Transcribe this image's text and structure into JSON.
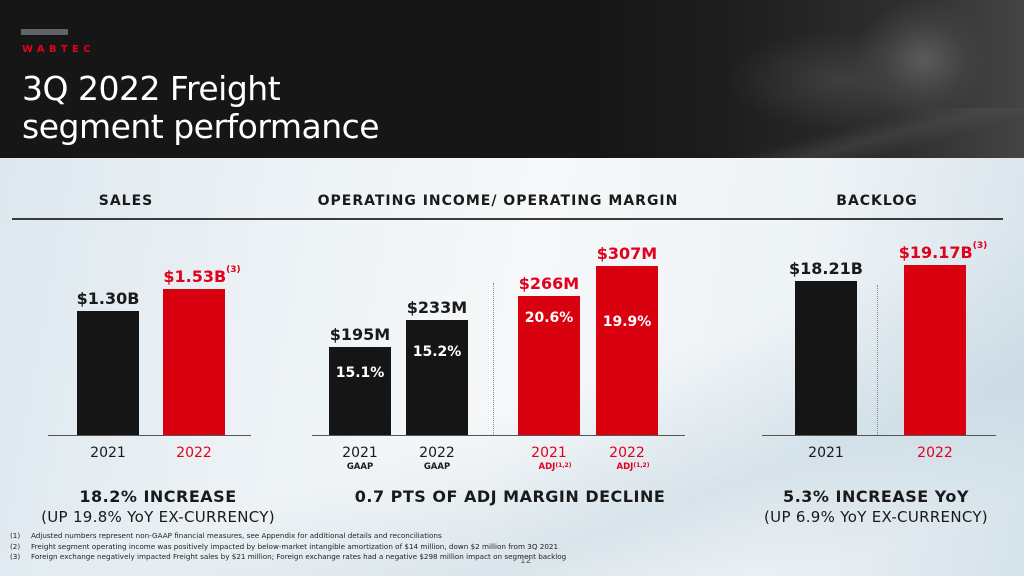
{
  "header": {
    "brand": "WABTEC",
    "title_line1": "3Q 2022 Freight",
    "title_line2": "segment performance"
  },
  "colors": {
    "accent_red": "#e3001b",
    "bar_black": "#151515",
    "bar_red": "#d9000f",
    "header_bg": "#161616"
  },
  "sections": {
    "sales": "SALES",
    "operating": "OPERATING INCOME/ OPERATING MARGIN",
    "backlog": "BACKLOG"
  },
  "chart_data": [
    {
      "type": "bar",
      "title": "SALES",
      "categories": [
        "2021",
        "2022"
      ],
      "values": [
        1.3,
        1.53
      ],
      "units": "$B",
      "value_labels": [
        "$1.30B",
        "$1.53B"
      ],
      "value_footnotes": [
        "",
        "(3)"
      ],
      "colors": [
        "#151515",
        "#d9000f"
      ],
      "summary": "18.2% INCREASE",
      "summary_sub": "(UP 19.8% YoY EX-CURRENCY)"
    },
    {
      "type": "bar",
      "title": "OPERATING INCOME/ OPERATING MARGIN",
      "categories": [
        "2021",
        "2022",
        "2021",
        "2022"
      ],
      "category_subs": [
        "GAAP",
        "GAAP",
        "ADJ",
        "ADJ"
      ],
      "category_sub_footnotes": [
        "",
        "",
        "(1,2)",
        "(1,2)"
      ],
      "values": [
        195,
        233,
        266,
        307
      ],
      "units": "$M",
      "value_labels": [
        "$195M",
        "$233M",
        "$266M",
        "$307M"
      ],
      "margins": [
        "15.1%",
        "15.2%",
        "20.6%",
        "19.9%"
      ],
      "colors": [
        "#151515",
        "#151515",
        "#d9000f",
        "#d9000f"
      ],
      "summary": "0.7 PTS OF ADJ MARGIN DECLINE"
    },
    {
      "type": "bar",
      "title": "BACKLOG",
      "categories": [
        "2021",
        "2022"
      ],
      "values": [
        18.21,
        19.17
      ],
      "units": "$B",
      "value_labels": [
        "$18.21B",
        "$19.17B"
      ],
      "value_footnotes": [
        "",
        "(3)"
      ],
      "colors": [
        "#151515",
        "#d9000f"
      ],
      "summary": "5.3% INCREASE YoY",
      "summary_sub": "(UP 6.9% YoY EX-CURRENCY)"
    }
  ],
  "footnotes": [
    {
      "num": "(1)",
      "text": "Adjusted numbers represent non-GAAP financial measures, see Appendix for additional details and reconciliations"
    },
    {
      "num": "(2)",
      "text": "Freight segment operating income was positively impacted by below-market intangible amortization of $14 million, down $2 million from 3Q 2021"
    },
    {
      "num": "(3)",
      "text": "Foreign exchange negatively impacted Freight sales by $21 million; Foreign exchange rates had a negative $298 million impact on segment backlog"
    }
  ],
  "page_number": "12"
}
